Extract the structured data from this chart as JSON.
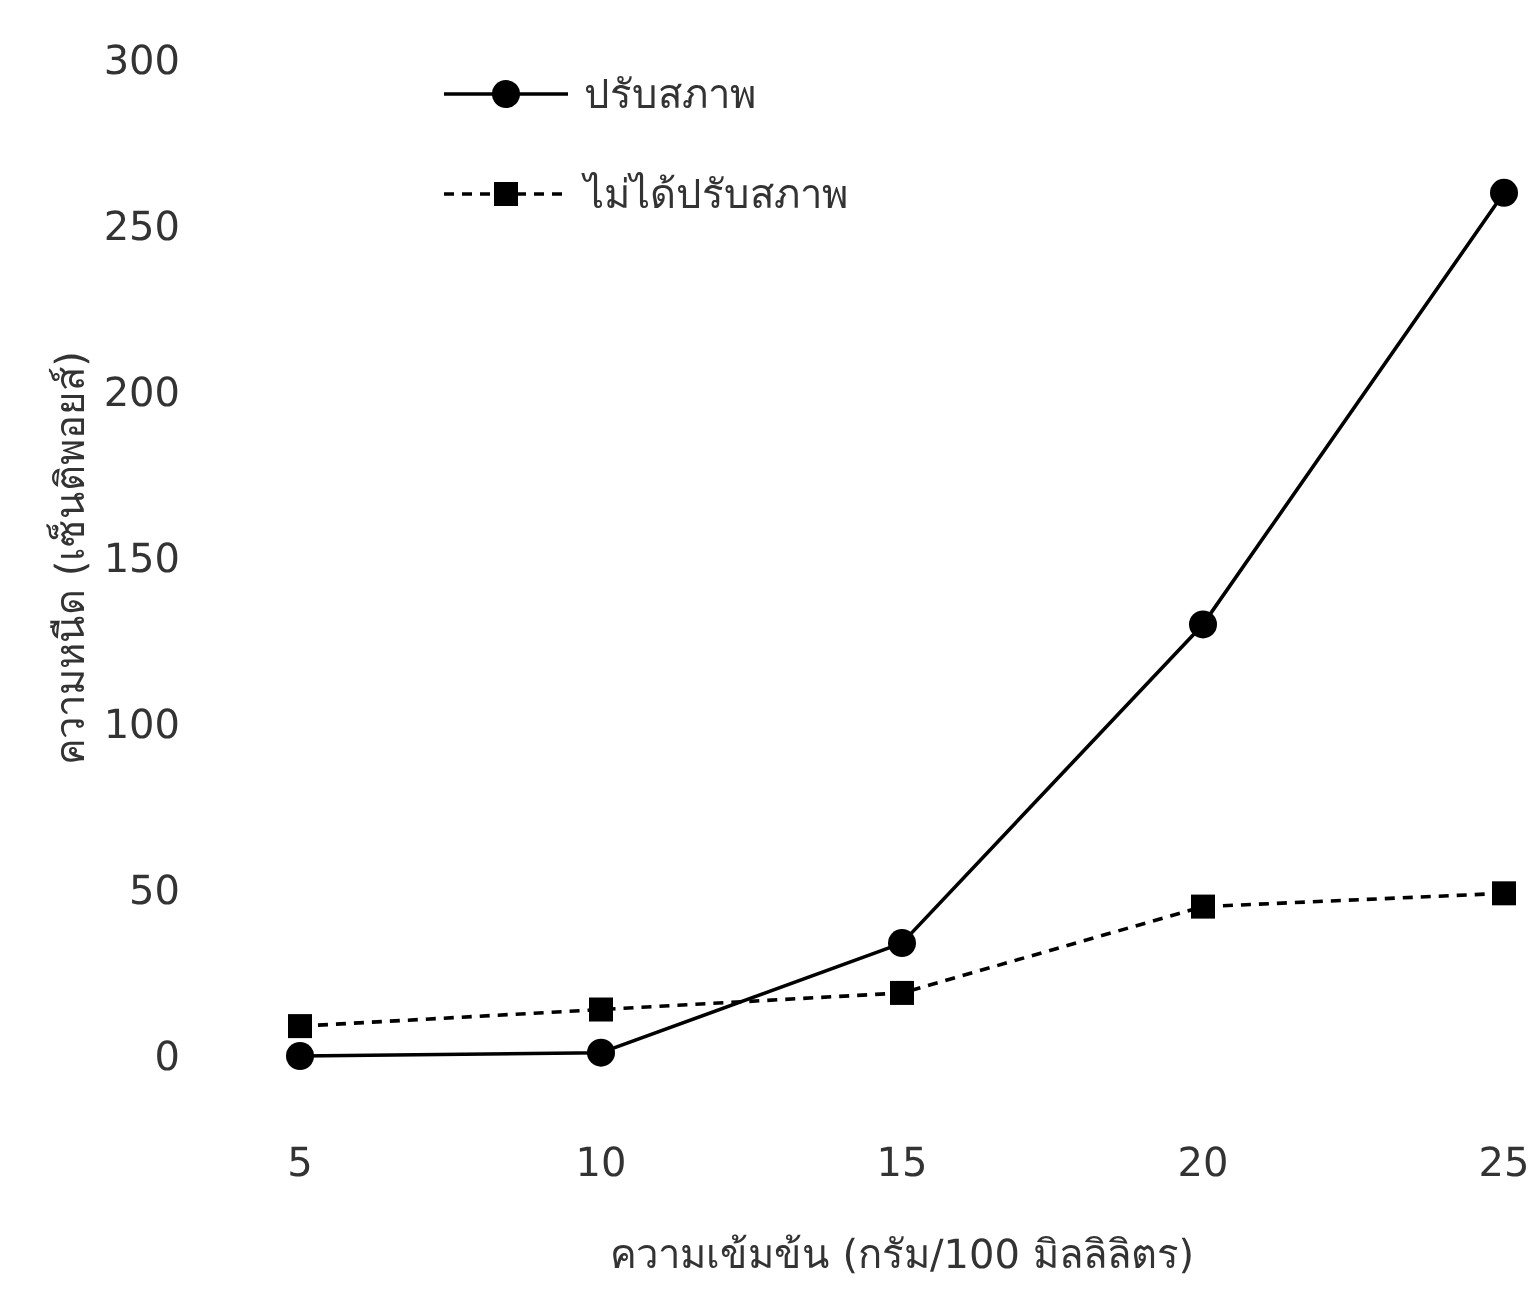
{
  "chart_data": {
    "type": "line",
    "xlabel": "ความเข้มข้น (กรัม/100 มิลลิลิตร)",
    "ylabel": "ความหนืด (เซ็นติพอยส์)",
    "x": [
      5,
      10,
      15,
      20,
      25
    ],
    "series": [
      {
        "name": "ปรับสภาพ",
        "color": "#000000",
        "marker": "circle",
        "line_style": "solid",
        "values": [
          0,
          1,
          34,
          130,
          260
        ]
      },
      {
        "name": "ไม่ได้ปรับสภาพ",
        "color": "#000000",
        "marker": "square",
        "line_style": "dashed",
        "values": [
          9,
          14,
          19,
          45,
          49
        ]
      }
    ],
    "xlim": [
      5,
      25
    ],
    "xticks": [
      5,
      10,
      15,
      20,
      25
    ],
    "ylim": [
      0,
      300
    ],
    "yticks": [
      0,
      50,
      100,
      150,
      200,
      250,
      300
    ],
    "grid": false,
    "legend": "top left"
  }
}
